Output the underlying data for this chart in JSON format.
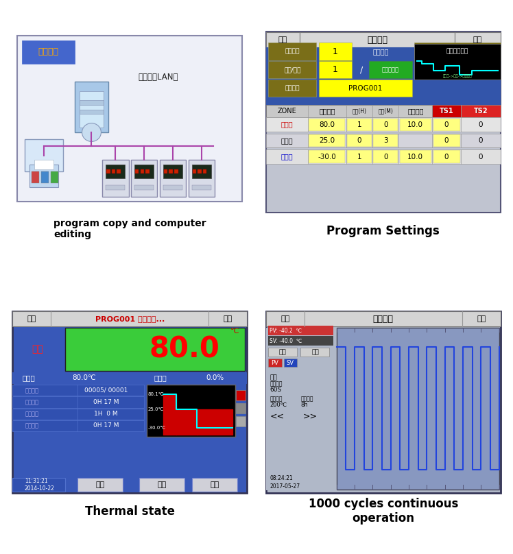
{
  "bg_color": "#ffffff",
  "title_captions": [
    "program copy and computer\nediting",
    "Program Settings",
    "Thermal state",
    "1000 cycles continuous\noperation"
  ],
  "prog_settings": {
    "col_headers": [
      "ZONE",
      "设定温度",
      "时间(H)",
      "时间(M)",
      "补偿温度",
      "TS1",
      "TS2"
    ],
    "data_rows": [
      [
        "高温室",
        "80.0",
        "1",
        "0",
        "10.0",
        "0",
        "0"
      ],
      [
        "常温室",
        "25.0",
        "0",
        "3",
        "",
        "0",
        "0"
      ],
      [
        "低温室",
        "-30.0",
        "1",
        "0",
        "10.0",
        "0",
        "0"
      ]
    ],
    "row_zone_colors": [
      "#cc0000",
      "#000000",
      "#0000cc"
    ]
  },
  "thermal_state": {
    "table_rows": [
      [
        "循环周期",
        "00005/ 00001"
      ],
      [
        "段运时间",
        "0H 17 M"
      ],
      [
        "段数时间",
        "1H  0 M"
      ],
      [
        "运行时间",
        "0H 17 M"
      ]
    ],
    "bottom_btns": [
      "保持",
      "跳段",
      "停止"
    ]
  }
}
